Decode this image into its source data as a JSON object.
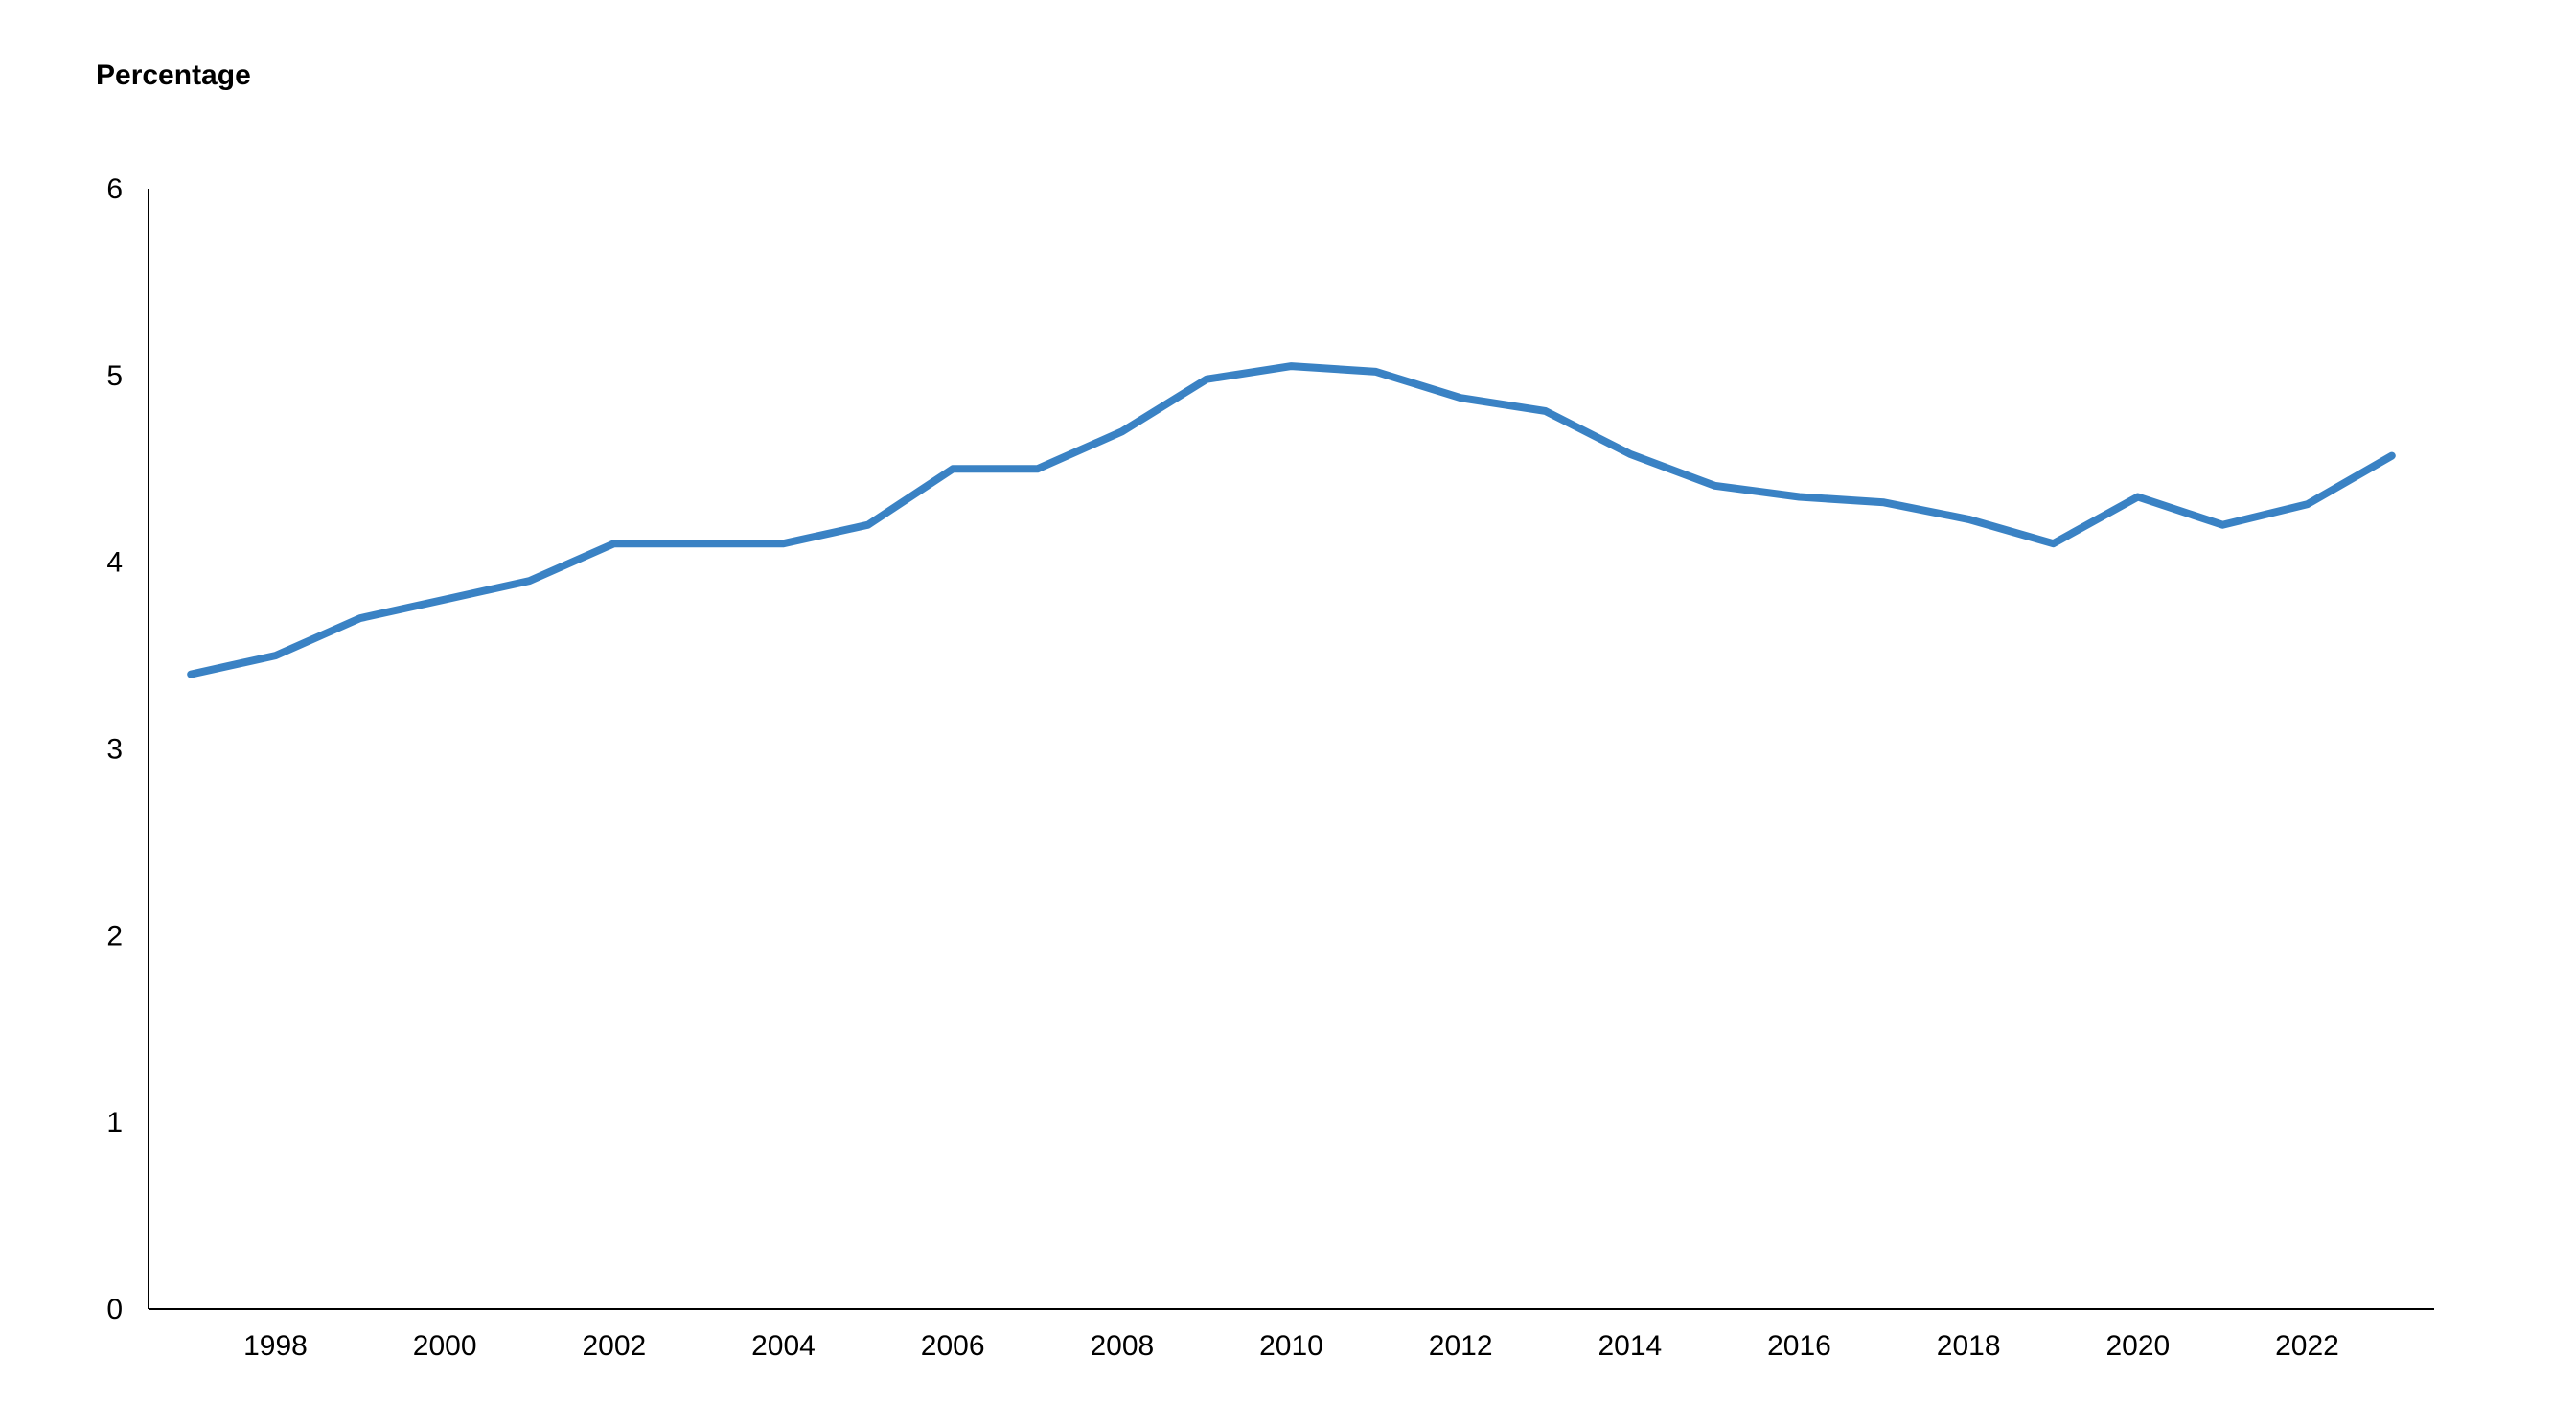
{
  "chart_data": {
    "type": "line",
    "title": "",
    "xlabel": "",
    "ylabel": "Percentage",
    "ylim": [
      0,
      6
    ],
    "xlim": [
      1996.5,
      2023.5
    ],
    "yticks": [
      0,
      1,
      2,
      3,
      4,
      5,
      6
    ],
    "xticks": [
      1998,
      2000,
      2002,
      2004,
      2006,
      2008,
      2010,
      2012,
      2014,
      2016,
      2018,
      2020,
      2022
    ],
    "grid": false,
    "legend": "none",
    "x": [
      1997,
      1998,
      1999,
      2000,
      2001,
      2002,
      2003,
      2004,
      2005,
      2006,
      2007,
      2008,
      2009,
      2010,
      2011,
      2012,
      2013,
      2014,
      2015,
      2016,
      2017,
      2018,
      2019,
      2020,
      2021,
      2022,
      2023
    ],
    "series": [
      {
        "color": "#3a82c4",
        "values": [
          3.4,
          3.5,
          3.7,
          3.8,
          3.9,
          4.1,
          4.1,
          4.1,
          4.2,
          4.5,
          4.5,
          4.7,
          4.98,
          5.05,
          5.02,
          4.88,
          4.81,
          4.58,
          4.41,
          4.35,
          4.32,
          4.23,
          4.1,
          4.35,
          4.2,
          4.31,
          4.57
        ]
      }
    ]
  }
}
